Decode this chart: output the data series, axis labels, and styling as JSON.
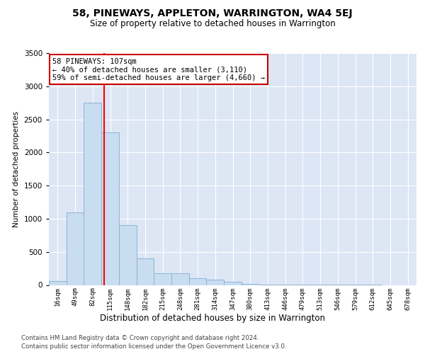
{
  "title": "58, PINEWAYS, APPLETON, WARRINGTON, WA4 5EJ",
  "subtitle": "Size of property relative to detached houses in Warrington",
  "xlabel": "Distribution of detached houses by size in Warrington",
  "ylabel": "Number of detached properties",
  "categories": [
    "16sqm",
    "49sqm",
    "82sqm",
    "115sqm",
    "148sqm",
    "182sqm",
    "215sqm",
    "248sqm",
    "281sqm",
    "314sqm",
    "347sqm",
    "380sqm",
    "413sqm",
    "446sqm",
    "479sqm",
    "513sqm",
    "546sqm",
    "579sqm",
    "612sqm",
    "645sqm",
    "678sqm"
  ],
  "values": [
    55,
    1100,
    2750,
    2300,
    900,
    400,
    180,
    175,
    100,
    75,
    50,
    20,
    10,
    10,
    5,
    5,
    3,
    2,
    1,
    0,
    0
  ],
  "bar_color": "#c9ddf0",
  "bar_edge_color": "#8ab4d8",
  "red_line_x": 2.65,
  "annotation_line1": "58 PINEWAYS: 107sqm",
  "annotation_line2": "← 40% of detached houses are smaller (3,110)",
  "annotation_line3": "59% of semi-detached houses are larger (4,660) →",
  "annotation_box_color": "#ffffff",
  "annotation_box_edgecolor": "#cc0000",
  "ylim": [
    0,
    3500
  ],
  "yticks": [
    0,
    500,
    1000,
    1500,
    2000,
    2500,
    3000,
    3500
  ],
  "background_color": "#dde6f5",
  "footer_line1": "Contains HM Land Registry data © Crown copyright and database right 2024.",
  "footer_line2": "Contains public sector information licensed under the Open Government Licence v3.0."
}
